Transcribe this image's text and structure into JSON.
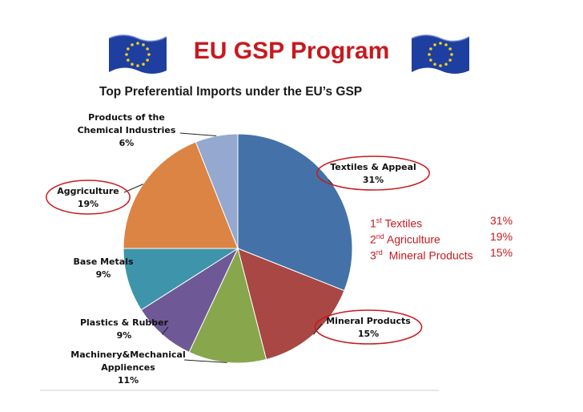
{
  "slide": {
    "title": "EU GSP Program",
    "subtitle": "Top Preferential Imports under the EU’s GSP",
    "flag_left": "eu-flag-icon",
    "flag_right": "eu-flag-icon",
    "accent_color": "#c8191e"
  },
  "chart_data": {
    "type": "pie",
    "title": "",
    "categories": [
      "Textiles & Appeal",
      "Mineral Products",
      "Machinery&Mechanical Appliences",
      "Plastics & Rubber",
      "Base Metals",
      "Aggriculture",
      "Products of the Chemical Industries"
    ],
    "values": [
      31,
      15,
      11,
      9,
      9,
      19,
      6
    ],
    "value_suffix": "%",
    "colors": [
      "#4472a8",
      "#a84744",
      "#88a64c",
      "#6e5896",
      "#3d94ab",
      "#db8443",
      "#94a8d0"
    ],
    "label_lines": [
      [
        "Textiles & Appeal",
        "31%"
      ],
      [
        "Mineral Products",
        "15%"
      ],
      [
        "Machinery&Mechanical",
        "Appliences",
        "11%"
      ],
      [
        "Plastics & Rubber",
        "9%"
      ],
      [
        "Base Metals",
        "9%"
      ],
      [
        "Aggriculture",
        "19%"
      ],
      [
        "Products of the",
        "Chemical Industries",
        "6%"
      ]
    ],
    "highlighted": [
      "Textiles & Appeal",
      "Mineral Products",
      "Aggriculture"
    ],
    "highlight_color": "#c8191e"
  },
  "ranking": [
    {
      "ordinal": "1",
      "suffix": "st",
      "label": " Textiles",
      "value": "31%"
    },
    {
      "ordinal": "2",
      "suffix": "nd",
      "label": " Agriculture",
      "value": "19%"
    },
    {
      "ordinal": "3",
      "suffix": "rd",
      "label": "  Mineral Products",
      "value": "15%"
    }
  ]
}
